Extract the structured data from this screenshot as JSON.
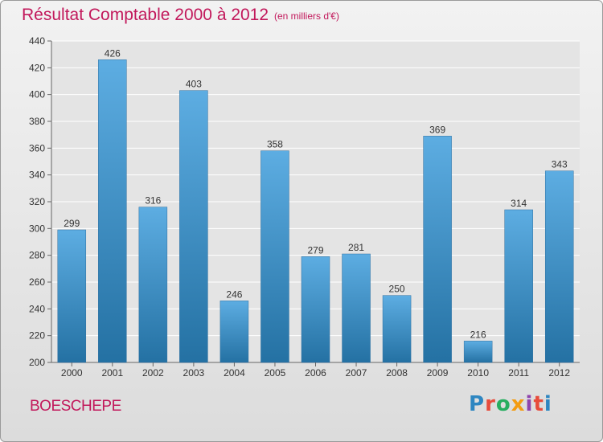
{
  "header": {
    "title": "Résultat Comptable 2000 à 2012",
    "subtitle": "(en milliers d'€)"
  },
  "footer": {
    "commune": "BOESCHEPE",
    "logo_letters": [
      "P",
      "r",
      "o",
      "x",
      "i",
      "t",
      "i"
    ],
    "logo_colors": [
      "#2e86c1",
      "#e74c3c",
      "#27ae60",
      "#f39c12",
      "#8e44ad",
      "#e74c3c",
      "#2e86c1"
    ]
  },
  "chart_data": {
    "type": "bar",
    "title": "Résultat Comptable 2000 à 2012",
    "subtitle": "(en milliers d'€)",
    "categories": [
      "2000",
      "2001",
      "2002",
      "2003",
      "2004",
      "2005",
      "2006",
      "2007",
      "2008",
      "2009",
      "2010",
      "2011",
      "2012"
    ],
    "values": [
      299,
      426,
      316,
      403,
      246,
      358,
      279,
      281,
      250,
      369,
      216,
      314,
      343
    ],
    "ylim": [
      200,
      440
    ],
    "yticks": [
      200,
      220,
      240,
      260,
      280,
      300,
      320,
      340,
      360,
      380,
      400,
      420,
      440
    ],
    "grid": true,
    "bar_color_top": "#5dade2",
    "bar_color_bottom": "#2471a3"
  }
}
